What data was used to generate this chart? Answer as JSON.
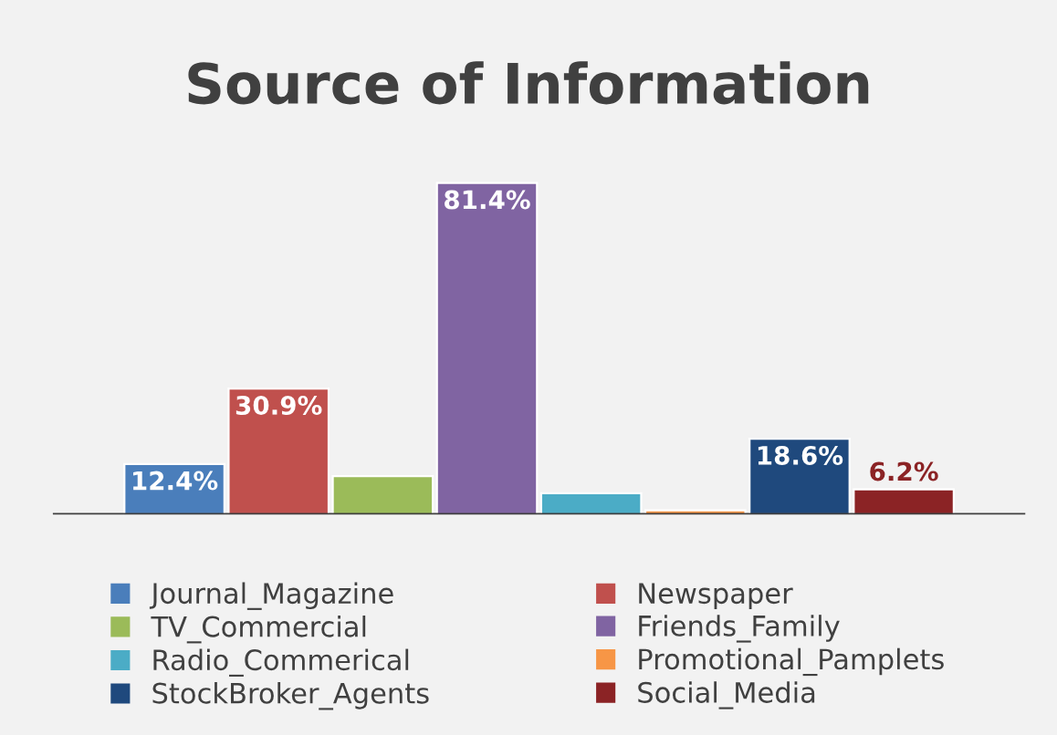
{
  "chart_data": {
    "type": "bar",
    "title": "Source of Information",
    "categories": [
      null
    ],
    "series": [
      {
        "name": "Journal_Magazine",
        "color": "#4a7ebb",
        "values": [
          12.4
        ],
        "value_labels": [
          "12.4%"
        ]
      },
      {
        "name": "Newspaper",
        "color": "#c0504d",
        "values": [
          30.9
        ],
        "value_labels": [
          "30.9%"
        ]
      },
      {
        "name": "TV_Commercial",
        "color": "#9bbb59",
        "values": [
          9.4
        ],
        "value_labels": [
          null
        ]
      },
      {
        "name": "Friends_Family",
        "color": "#8064a2",
        "values": [
          81.4
        ],
        "value_labels": [
          "81.4%"
        ]
      },
      {
        "name": "Radio_Commerical",
        "color": "#4bacc6",
        "values": [
          5.2
        ],
        "value_labels": [
          null
        ]
      },
      {
        "name": "Promotional_Pamplets",
        "color": "#f79646",
        "values": [
          1.0
        ],
        "value_labels": [
          null
        ]
      },
      {
        "name": "StockBroker_Agents",
        "color": "#1f497d",
        "values": [
          18.6
        ],
        "value_labels": [
          "18.6%"
        ]
      },
      {
        "name": "Social_Media",
        "color": "#8b2325",
        "values": [
          6.2
        ],
        "value_labels": [
          "6.2%"
        ]
      }
    ],
    "grid": false,
    "legend": "bottom"
  }
}
